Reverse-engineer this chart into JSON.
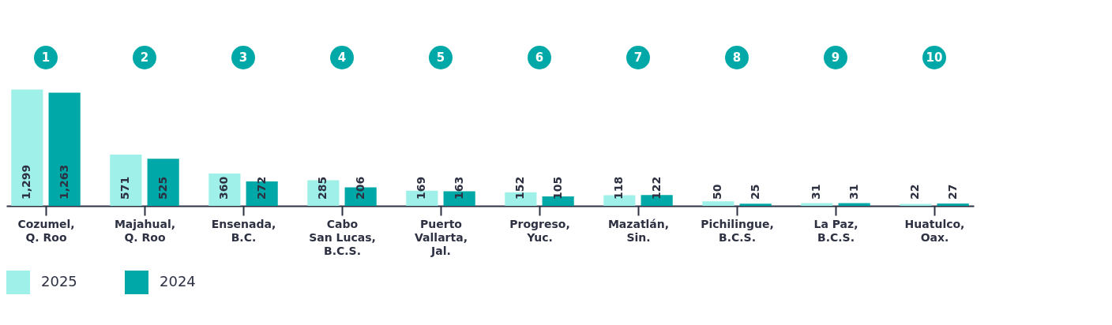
{
  "chart_data": {
    "type": "bar",
    "categories": [
      "Cozumel,\nQ. Roo",
      "Majahual,\nQ. Roo",
      "Ensenada,\nB.C.",
      "Cabo\nSan Lucas,\nB.C.S.",
      "Puerto\nVallarta,\nJal.",
      "Progreso,\nYuc.",
      "Mazatlán,\nSin.",
      "Pichilingue,\nB.C.S.",
      "La Paz,\nB.C.S.",
      "Huatulco,\nOax."
    ],
    "series": [
      {
        "name": "2025",
        "color": "#9ef0e8",
        "values": [
          1299,
          571,
          360,
          285,
          169,
          152,
          118,
          50,
          31,
          22
        ],
        "value_labels": [
          "1,299",
          "571",
          "360",
          "285",
          "169",
          "152",
          "118",
          "50",
          "31",
          "22"
        ]
      },
      {
        "name": "2024",
        "color": "#00a9a8",
        "values": [
          1263,
          525,
          272,
          206,
          163,
          105,
          122,
          25,
          31,
          27
        ],
        "value_labels": [
          "1,263",
          "525",
          "272",
          "206",
          "163",
          "105",
          "122",
          "25",
          "31",
          "27"
        ]
      }
    ],
    "ylim": [
      0,
      1320
    ],
    "legend": "bottom",
    "annotations": [
      "1",
      "2",
      "3",
      "4",
      "5",
      "6",
      "7",
      "8",
      "9",
      "10"
    ]
  }
}
